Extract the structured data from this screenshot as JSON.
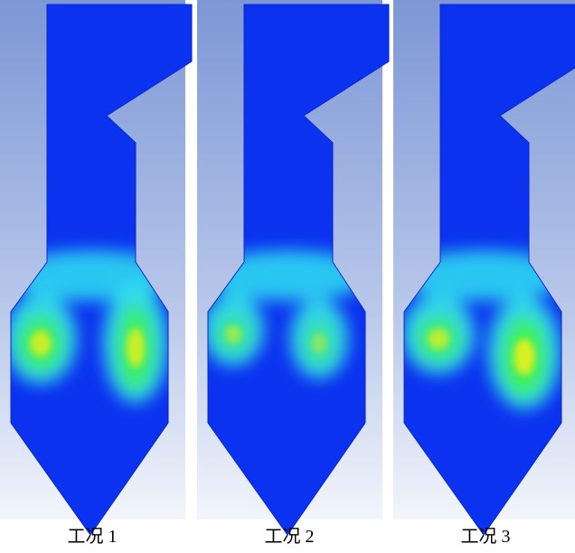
{
  "panels": [
    {
      "label": "工况 1"
    },
    {
      "label": "工况 2"
    },
    {
      "label": "工况 3"
    }
  ]
}
